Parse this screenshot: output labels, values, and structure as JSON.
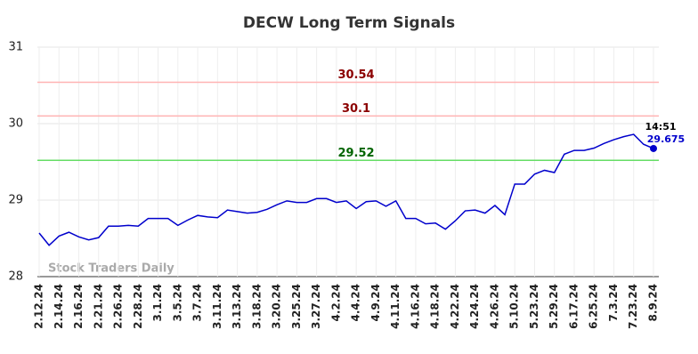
{
  "chart_data": {
    "type": "line",
    "title": "DECW Long Term Signals",
    "watermark": "Stock Traders Daily",
    "categories": [
      "2.12.24",
      null,
      "2.14.24",
      null,
      "2.16.24",
      null,
      "2.21.24",
      null,
      "2.26.24",
      null,
      "2.28.24",
      null,
      "3.1.24",
      null,
      "3.5.24",
      null,
      "3.7.24",
      null,
      "3.11.24",
      null,
      "3.13.24",
      null,
      "3.18.24",
      null,
      "3.20.24",
      null,
      "3.25.24",
      null,
      "3.27.24",
      null,
      "4.2.24",
      null,
      "4.4.24",
      null,
      "4.9.24",
      null,
      "4.11.24",
      null,
      "4.16.24",
      null,
      "4.18.24",
      null,
      "4.22.24",
      null,
      "4.24.24",
      null,
      "4.26.24",
      null,
      "5.10.24",
      null,
      "5.23.24",
      null,
      "5.29.24",
      null,
      "6.17.24",
      null,
      "6.25.24",
      null,
      "7.3.24",
      null,
      "7.23.24",
      null,
      "8.9.24"
    ],
    "values": [
      28.57,
      28.41,
      28.53,
      28.58,
      28.52,
      28.48,
      28.51,
      28.66,
      28.66,
      28.67,
      28.66,
      28.76,
      28.76,
      28.76,
      28.67,
      28.74,
      28.8,
      28.78,
      28.77,
      28.87,
      28.85,
      28.83,
      28.84,
      28.88,
      28.94,
      28.99,
      28.97,
      28.97,
      29.02,
      29.02,
      28.97,
      28.99,
      28.89,
      28.98,
      28.99,
      28.92,
      28.99,
      28.76,
      28.76,
      28.69,
      28.7,
      28.62,
      28.73,
      28.86,
      28.87,
      28.83,
      28.93,
      28.81,
      29.21,
      29.21,
      29.34,
      29.39,
      29.36,
      29.6,
      29.65,
      29.65,
      29.68,
      29.74,
      29.79,
      29.83,
      29.86,
      29.73,
      29.675
    ],
    "color": "#0000cc",
    "last_time": "14:51",
    "ylim": [
      28,
      31
    ],
    "yticks": [
      28,
      29,
      30,
      31
    ],
    "grid": true,
    "reference_lines": [
      {
        "value": 30.54,
        "color": "#ffb3b3",
        "label_color": "#8b0000"
      },
      {
        "value": 30.1,
        "color": "#ffb3b3",
        "label_color": "#8b0000"
      },
      {
        "value": 29.52,
        "color": "#66dd66",
        "label_color": "#006400"
      }
    ]
  }
}
